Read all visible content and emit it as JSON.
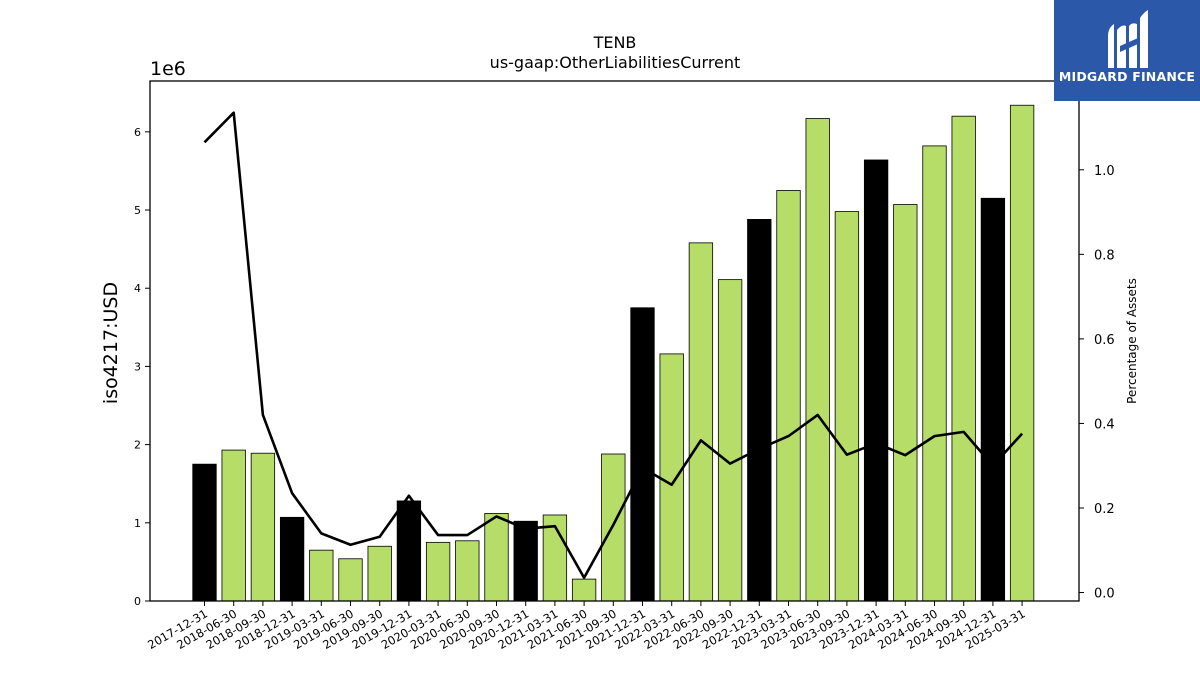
{
  "chart_data": {
    "type": "bar",
    "title": "TENB",
    "subtitle": "us-gaap:OtherLiabilitiesCurrent",
    "ylabel": "iso4217:USD",
    "y_offset_label": "1e6",
    "y2label": "Percentage of Assets",
    "ylim": [
      0,
      6650000
    ],
    "y2lim": [
      -0.02,
      1.21
    ],
    "yticks": [
      "0",
      "1",
      "2",
      "3",
      "4",
      "5",
      "6"
    ],
    "y2ticks": [
      "0.0",
      "0.2",
      "0.4",
      "0.6",
      "0.8",
      "1.0"
    ],
    "categories": [
      "2017-12-31",
      "2018-06-30",
      "2018-09-30",
      "2018-12-31",
      "2019-03-31",
      "2019-06-30",
      "2019-09-30",
      "2019-12-31",
      "2020-03-31",
      "2020-06-30",
      "2020-09-30",
      "2020-12-31",
      "2021-03-31",
      "2021-06-30",
      "2021-09-30",
      "2021-12-31",
      "2022-03-31",
      "2022-06-30",
      "2022-09-30",
      "2022-12-31",
      "2023-03-31",
      "2023-06-30",
      "2023-09-30",
      "2023-12-31",
      "2024-03-31",
      "2024-06-30",
      "2024-09-30",
      "2024-12-31",
      "2025-03-31"
    ],
    "series": [
      {
        "values": [
          1750000,
          1930000,
          1890000,
          1070000,
          650000,
          540000,
          700000,
          1280000,
          750000,
          770000,
          1120000,
          1020000,
          1100000,
          280000,
          1880000,
          3750000,
          3160000,
          4580000,
          4110000,
          4880000,
          5250000,
          6170000,
          4980000,
          5640000,
          5070000,
          5820000,
          6200000,
          5150000,
          6340000
        ]
      },
      {
        "axis": "right",
        "type": "line",
        "values": [
          1.065,
          1.135,
          0.42,
          0.235,
          0.14,
          0.113,
          0.132,
          0.229,
          0.136,
          0.136,
          0.18,
          0.151,
          0.157,
          0.035,
          0.16,
          0.295,
          0.255,
          0.36,
          0.305,
          0.34,
          0.37,
          0.42,
          0.326,
          0.353,
          0.325,
          0.37,
          0.38,
          0.3,
          0.376
        ]
      }
    ],
    "bar_colors": {
      "annual": "#000000",
      "quarterly": "#b5dd68"
    },
    "annual_flags": [
      true,
      false,
      false,
      true,
      false,
      false,
      false,
      true,
      false,
      false,
      false,
      true,
      false,
      false,
      false,
      true,
      false,
      false,
      false,
      true,
      false,
      false,
      false,
      true,
      false,
      false,
      false,
      true,
      false
    ],
    "line_color": "#000000",
    "grid": false
  },
  "logo": {
    "text": "MIDGARD FINANCE",
    "color": "#2b58a8"
  }
}
